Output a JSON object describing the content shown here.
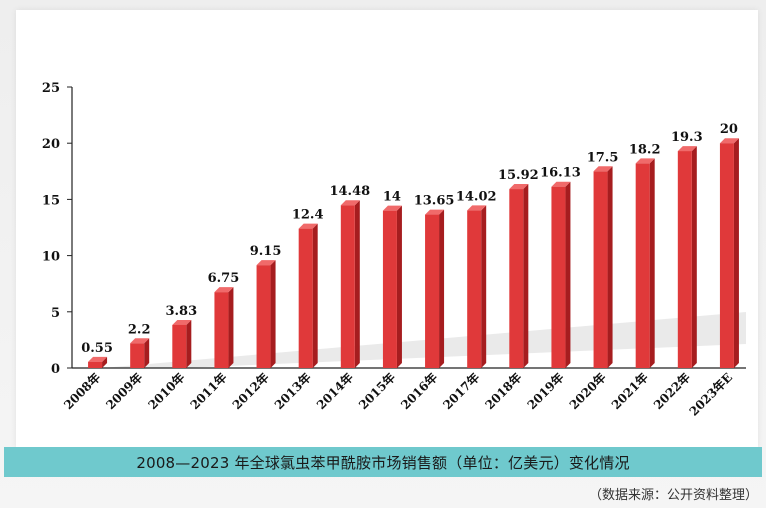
{
  "chart_data": {
    "type": "bar",
    "categories": [
      "2008年",
      "2009年",
      "2010年",
      "2011年",
      "2012年",
      "2013年",
      "2014年",
      "2015年",
      "2016年",
      "2017年",
      "2018年",
      "2019年",
      "2020年",
      "2021年",
      "2022年",
      "2023年E"
    ],
    "values": [
      0.55,
      2.2,
      3.83,
      6.75,
      9.15,
      12.4,
      14.48,
      14,
      13.65,
      14.02,
      15.92,
      16.13,
      17.5,
      18.2,
      19.3,
      20
    ],
    "value_labels": [
      "0.55",
      "2.2",
      "3.83",
      "6.75",
      "9.15",
      "12.4",
      "14.48",
      "14",
      "13.65",
      "14.02",
      "15.92",
      "16.13",
      "17.5",
      "18.2",
      "19.3",
      "20"
    ],
    "yticks": [
      "0",
      "5",
      "10",
      "15",
      "20",
      "25"
    ],
    "ylim": [
      0,
      25
    ],
    "grid": false,
    "legend": "none",
    "bar_color": "#e0393a",
    "bar_side_color": "#a61d1f",
    "bar_top_color": "#f06a6a"
  },
  "caption": "2008—2023 年全球氯虫苯甲酰胺市场销售额（单位：亿美元）变化情况",
  "source": "（数据来源：公开资料整理）"
}
